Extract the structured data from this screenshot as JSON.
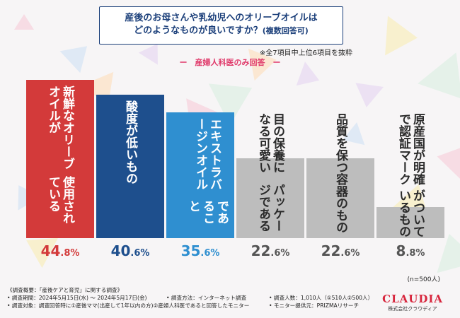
{
  "title": {
    "line1": "産後のお母さんや乳幼児へのオリーブオイルは",
    "line2": "どのようなものが良いですか？",
    "multi": "(複数回答可)"
  },
  "note_top": "※全7項目中上位6項目を抜粋",
  "subtitle": "ー　産婦人科医のみ回答　ー",
  "chart_data": {
    "type": "bar",
    "title": "産後のお母さんや乳幼児へのオリーブオイルはどのようなものが良いですか？(複数回答可)",
    "subtitle": "産婦人科医のみ回答",
    "unit": "%",
    "ylim": [
      0,
      50
    ],
    "categories": [
      "新鮮なオリーブオイルが使用されている",
      "酸度が低いもの",
      "エキストラバージンオイルであること",
      "目の保養になる可愛いパッケージである",
      "品質を保つ容器のもの",
      "原産国が明確で認証マークがついているもの"
    ],
    "values": [
      44.8,
      40.6,
      35.6,
      22.6,
      22.6,
      8.8
    ],
    "label_lines": [
      [
        "新鮮なオリーブオイルが",
        "使用されている"
      ],
      [
        "酸度が低いもの"
      ],
      [
        "エキストラバージンオイル",
        "であること"
      ],
      [
        "目の保養になる可愛い",
        "パッケージである"
      ],
      [
        "品質を保つ容器のもの"
      ],
      [
        "原産国が明確で認証マーク",
        "がついているもの"
      ]
    ],
    "value_labels": [
      {
        "int": "44",
        "dec": ".8%"
      },
      {
        "int": "40",
        "dec": ".6%"
      },
      {
        "int": "35",
        "dec": ".6%"
      },
      {
        "int": "22",
        "dec": ".6%"
      },
      {
        "int": "22",
        "dec": ".6%"
      },
      {
        "int": "8",
        "dec": ".8%"
      }
    ],
    "bar_colors": [
      "#d33a3a",
      "#1e4f8d",
      "#2f8fd0",
      "#bdbdbd",
      "#bdbdbd",
      "#bdbdbd"
    ],
    "value_colors": [
      "#d33a3a",
      "#1e4f8d",
      "#2f8fd0",
      "#555555",
      "#555555",
      "#555555"
    ]
  },
  "n_note": "(n=500人)",
  "footer": {
    "overview": "《調査概要：「産後ケアと育児」に関する調査》",
    "period": "• 調査期間：2024年5月15日(水) ～ 2024年5月17日(金)",
    "method": "• 調査方法：インターネット調査",
    "count": "• 調査人数：1,010人（①510人②500人）",
    "target": "• 調査対象：調査回答時に①産後ママ(出産して1年以内の方)②産婦人科医であると回答したモニター",
    "provider": "• モニター提供元：PRIZMAリサーチ"
  },
  "logo": {
    "brand": "CLAUDIA",
    "corp": "株式会社クラウディア"
  }
}
